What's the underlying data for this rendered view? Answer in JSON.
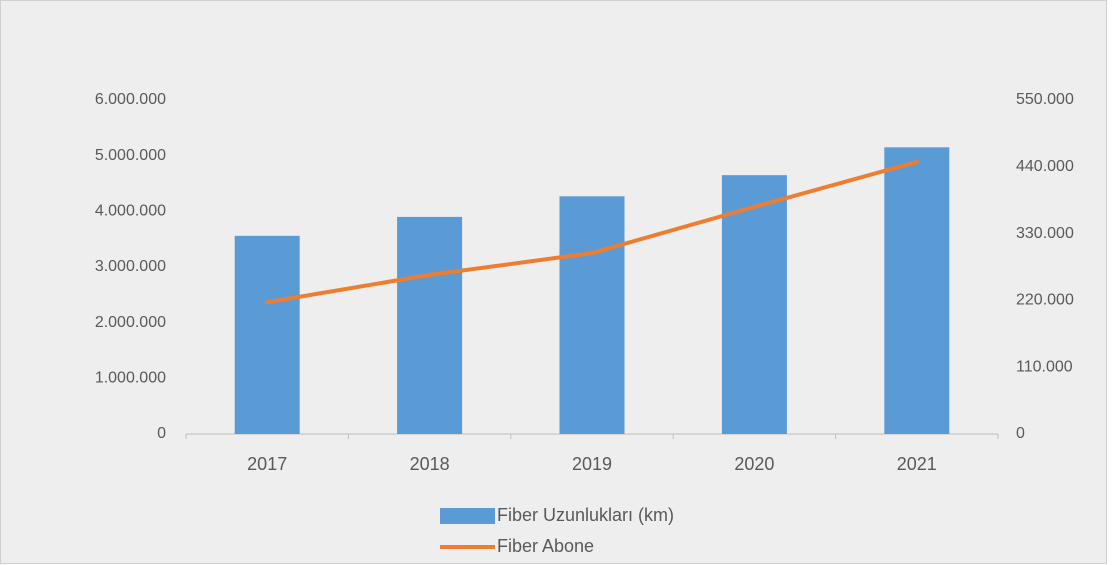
{
  "chart_data": {
    "type": "bar-line",
    "categories": [
      "2017",
      "2018",
      "2019",
      "2020",
      "2021"
    ],
    "series": [
      {
        "name": "Fiber Uzunlukları (km)",
        "color": "#5b9bd5",
        "type": "bar",
        "values": [
          3560000,
          3900000,
          4270000,
          4650000,
          5150000
        ]
      },
      {
        "name": "Fiber Abone",
        "color": "#ed7d31",
        "type": "line",
        "axis": "y2",
        "values": [
          217000,
          262000,
          298000,
          374000,
          448000
        ]
      }
    ],
    "ylim": [
      0,
      6000000
    ],
    "yticks": [
      0,
      {
        "value": 1000000,
        "label": "1.000.000"
      },
      {
        "value": 2000000,
        "label": "2.000.000"
      },
      {
        "value": 3000000,
        "label": "3.000.000"
      },
      {
        "value": 4000000,
        "label": "4.000.000"
      },
      {
        "value": 5000000,
        "label": "5.000.000"
      },
      {
        "value": 6000000,
        "label": "6.000.000"
      }
    ],
    "y2lim": [
      0,
      550000
    ],
    "y2ticks": [
      0,
      {
        "value": 110000,
        "label": "110.000"
      },
      {
        "value": 220000,
        "label": "220.000"
      },
      {
        "value": 330000,
        "label": "330.000"
      },
      {
        "value": 440000,
        "label": "440.000"
      },
      {
        "value": 550000,
        "label": "550.000"
      }
    ],
    "legend": "bottom"
  }
}
